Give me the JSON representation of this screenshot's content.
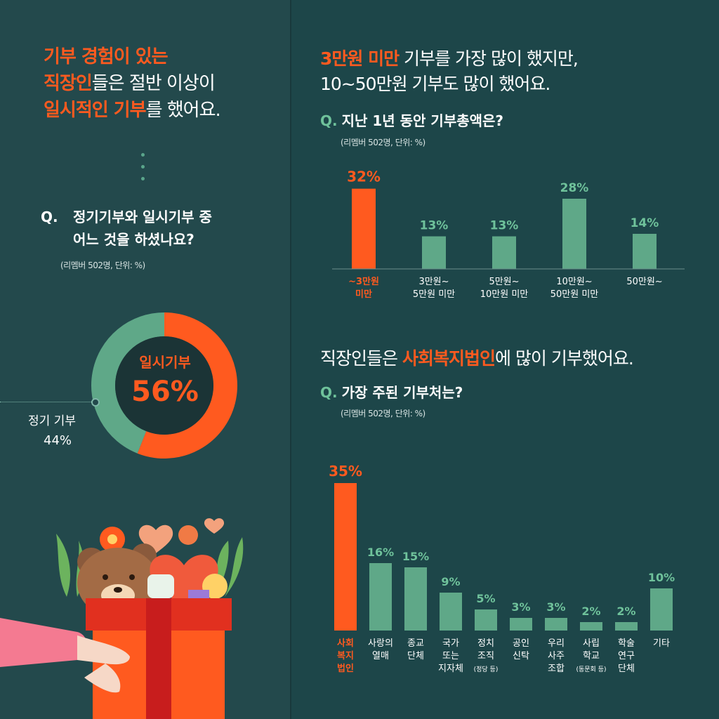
{
  "left": {
    "headline": [
      {
        "parts": [
          {
            "text": "기부 경험이 있는",
            "accent": true
          }
        ]
      },
      {
        "parts": [
          {
            "text": "직장인",
            "accent": true
          },
          {
            "text": "들은 절반 이상이",
            "accent": false
          }
        ]
      },
      {
        "parts": [
          {
            "text": "일시적인 기부",
            "accent": true
          },
          {
            "text": "를 했어요.",
            "accent": false
          }
        ]
      }
    ],
    "question_mark": "Q.",
    "question_line1": "정기기부와 일시기부 중",
    "question_line2": "어느 것을 하셨나요?",
    "note": "(리멤버 502명, 단위: %)",
    "donut_center_label": "일시기부",
    "donut_center_value": "56%",
    "regular_label": "정기 기부",
    "regular_value": "44%"
  },
  "right": {
    "headline1_accent": "3만원 미만",
    "headline1_rest": " 기부를 가장 많이 했지만,",
    "headline1_line2": "10~50만원 기부도 많이 했어요.",
    "q1_mark": "Q.",
    "q1_text": "지난 1년 동안 기부총액은?",
    "q1_note": "(리멤버 502명, 단위: %)",
    "headline2_pre": "직장인들은 ",
    "headline2_accent": "사회복지법인",
    "headline2_post": "에 많이 기부했어요.",
    "q2_mark": "Q.",
    "q2_text": "가장 주된 기부처는?",
    "q2_note": "(리멤버 502명, 단위: %)"
  },
  "colors": {
    "accent": "#ff5a1f",
    "bar": "#5fa888",
    "label_green": "#6fc29b",
    "bg": "#1f4a4d"
  },
  "chart_data": [
    {
      "type": "pie",
      "title": "정기기부와 일시기부 중 어느 것을 하셨나요?",
      "categories": [
        "일시기부",
        "정기 기부"
      ],
      "values": [
        56,
        44
      ],
      "unit": "%"
    },
    {
      "type": "bar",
      "title": "지난 1년 동안 기부총액은?",
      "categories": [
        [
          "~3만원",
          "미만"
        ],
        [
          "3만원~",
          "5만원 미만"
        ],
        [
          "5만원~",
          "10만원 미만"
        ],
        [
          "10만원~",
          "50만원 미만"
        ],
        [
          "50만원~"
        ]
      ],
      "values": [
        32,
        13,
        13,
        28,
        14
      ],
      "value_labels": [
        "32%",
        "13%",
        "13%",
        "28%",
        "14%"
      ],
      "highlight_index": 0,
      "ylim": [
        0,
        35
      ]
    },
    {
      "type": "bar",
      "title": "가장 주된 기부처는?",
      "categories": [
        [
          "사회",
          "복지",
          "법인"
        ],
        [
          "사랑의",
          "열매"
        ],
        [
          "종교",
          "단체"
        ],
        [
          "국가",
          "또는",
          "지자체"
        ],
        [
          "정치",
          "조직",
          "(정당 등)"
        ],
        [
          "공인",
          "신탁"
        ],
        [
          "우리",
          "사주",
          "조합"
        ],
        [
          "사립",
          "학교",
          "(동문회 등)"
        ],
        [
          "학술",
          "연구",
          "단체"
        ],
        [
          "기타"
        ]
      ],
      "values": [
        35,
        16,
        15,
        9,
        5,
        3,
        3,
        2,
        2,
        10
      ],
      "value_labels": [
        "35%",
        "16%",
        "15%",
        "9%",
        "5%",
        "3%",
        "3%",
        "2%",
        "2%",
        "10%"
      ],
      "highlight_index": 0,
      "ylim": [
        0,
        35
      ]
    }
  ]
}
